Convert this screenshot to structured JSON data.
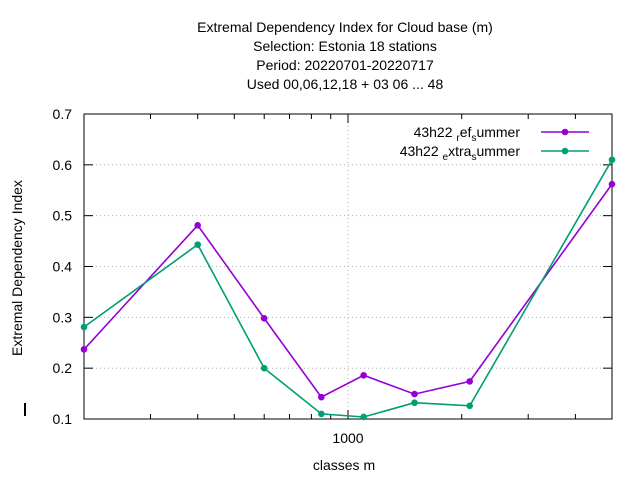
{
  "chart_data": {
    "type": "line",
    "title_lines": [
      "Extremal Dependency Index  for Cloud base (m)",
      "Selection: Estonia     18 stations",
      "Period: 20220701-20220717",
      "Used  00,06,12,18  + 03 06 ... 48"
    ],
    "xlabel": "classes m",
    "ylabel": "Extremal Dependency Index",
    "x_scale": "log",
    "xlim": [
      200,
      5000
    ],
    "ylim": [
      0.1,
      0.7
    ],
    "y_ticks": [
      0.1,
      0.2,
      0.3,
      0.4,
      0.5,
      0.6,
      0.7
    ],
    "y_tick_labels": [
      "0.1",
      "0.2",
      "0.3",
      "0.4",
      "0.5",
      "0.6",
      "0.7"
    ],
    "x_major_ticks": [
      1000
    ],
    "x_major_tick_labels": [
      "1000"
    ],
    "x_minor_ticks": [
      300,
      400,
      500,
      600,
      700,
      800,
      900,
      2000,
      3000,
      4000
    ],
    "grid": true,
    "legend_position": "top-right",
    "x": [
      200,
      400,
      600,
      850,
      1100,
      1500,
      2100,
      5000
    ],
    "series": [
      {
        "name": "43h22 ref summer",
        "legend_parts": [
          "43h22 ",
          "r",
          "ef",
          "s",
          "ummer"
        ],
        "color": "#9400d3",
        "values": [
          0.237,
          0.481,
          0.298,
          0.143,
          0.186,
          0.149,
          0.174,
          0.562
        ]
      },
      {
        "name": "43h22 extra summer",
        "legend_parts": [
          "43h22 ",
          "e",
          "xtra",
          "s",
          "ummer"
        ],
        "color": "#009e73",
        "values": [
          0.281,
          0.443,
          0.2,
          0.11,
          0.104,
          0.132,
          0.126,
          0.61
        ]
      }
    ]
  }
}
